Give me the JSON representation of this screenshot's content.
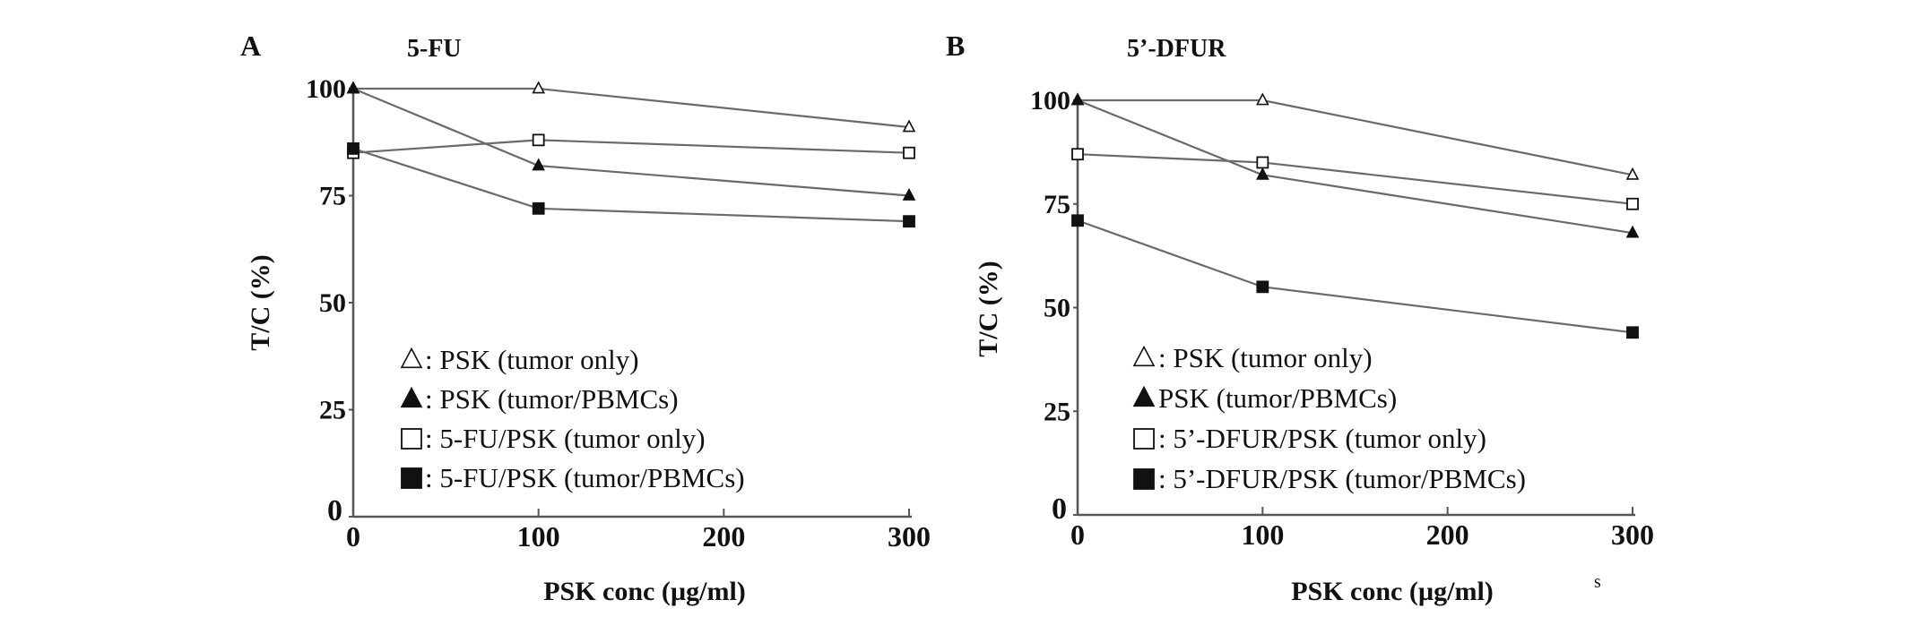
{
  "chart_data": [
    {
      "type": "line",
      "panel_label": "A",
      "title": "5-FU",
      "xlabel": "PSK conc (µg/ml)",
      "ylabel": "T/C (%)",
      "x": [
        0,
        100,
        300
      ],
      "xticks": [
        "0",
        "100",
        "200",
        "300"
      ],
      "yticks": [
        "0",
        "25",
        "50",
        "75",
        "100"
      ],
      "xlim": [
        0,
        300
      ],
      "ylim": [
        0,
        100
      ],
      "grid": false,
      "legend_placement": "bottom-center inside",
      "series": [
        {
          "name": ": PSK (tumor only)",
          "marker": "open-triangle",
          "values": [
            100,
            100,
            91
          ]
        },
        {
          "name": ": PSK (tumor/PBMCs)",
          "marker": "filled-triangle",
          "values": [
            100,
            82,
            75
          ]
        },
        {
          "name": ": 5-FU/PSK (tumor only)",
          "marker": "open-square",
          "values": [
            85,
            88,
            85
          ]
        },
        {
          "name": ": 5-FU/PSK (tumor/PBMCs)",
          "marker": "filled-square",
          "values": [
            86,
            72,
            69
          ]
        }
      ]
    },
    {
      "type": "line",
      "panel_label": "B",
      "title": "5’-DFUR",
      "xlabel": "PSK conc (µg/ml)",
      "ylabel": "T/C (%)",
      "x": [
        0,
        100,
        300
      ],
      "xticks": [
        "0",
        "100",
        "200",
        "300"
      ],
      "yticks": [
        "0",
        "25",
        "50",
        "75",
        "100"
      ],
      "xlim": [
        0,
        300
      ],
      "ylim": [
        0,
        100
      ],
      "grid": false,
      "legend_placement": "bottom-center inside",
      "annotation": "s",
      "series": [
        {
          "name": ": PSK (tumor only)",
          "marker": "open-triangle",
          "values": [
            100,
            100,
            82
          ]
        },
        {
          "name": " PSK (tumor/PBMCs)",
          "marker": "filled-triangle",
          "values": [
            100,
            82,
            68
          ]
        },
        {
          "name": ": 5’-DFUR/PSK (tumor only)",
          "marker": "open-square",
          "values": [
            87,
            85,
            75
          ]
        },
        {
          "name": ": 5’-DFUR/PSK (tumor/PBMCs)",
          "marker": "filled-square",
          "values": [
            71,
            55,
            44
          ]
        }
      ]
    }
  ],
  "colors": {
    "line": "#6a6a6a",
    "marker": "#111111",
    "axis": "#555555"
  }
}
